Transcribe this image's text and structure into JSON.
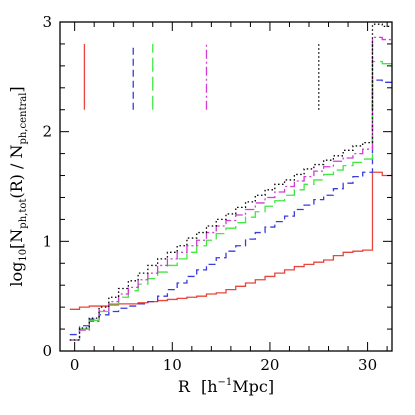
{
  "chart_data": {
    "type": "line",
    "line_style": "step",
    "xlabel": {
      "main": "R",
      "unit_open": "[h",
      "unit_exp": "−1",
      "unit_close": "Mpc]"
    },
    "ylabel": {
      "prefix": "log",
      "base": "10",
      "open": "[N",
      "sub1": "ph,tot",
      "mid": "(R) / N",
      "sub2": "ph,central",
      "close": "]"
    },
    "xlim": [
      -1.5,
      32.5
    ],
    "ylim": [
      0,
      3
    ],
    "x_ticks": [
      {
        "value": 0,
        "label": "0"
      },
      {
        "value": 10,
        "label": "10"
      },
      {
        "value": 20,
        "label": "20"
      },
      {
        "value": 30,
        "label": "30"
      }
    ],
    "y_ticks": [
      {
        "value": 0,
        "label": "0"
      },
      {
        "value": 1,
        "label": "1"
      },
      {
        "value": 2,
        "label": "2"
      },
      {
        "value": 3,
        "label": "3"
      }
    ],
    "x_minor_step": 2,
    "y_minor_step": 0.2,
    "grid": false,
    "marker_lines": [
      {
        "x": 1,
        "y0": 2.2,
        "y1": 2.8,
        "color": "#e8453c",
        "dash": "none"
      },
      {
        "x": 6,
        "y0": 2.2,
        "y1": 2.8,
        "color": "#3b3be0",
        "dash": "7,4"
      },
      {
        "x": 8,
        "y0": 2.2,
        "y1": 2.8,
        "color": "#41e841",
        "dash": "14,5"
      },
      {
        "x": 13.5,
        "y0": 2.2,
        "y1": 2.8,
        "color": "#d23cd2",
        "dash": "9,3,2,3"
      },
      {
        "x": 25,
        "y0": 2.2,
        "y1": 2.8,
        "color": "#000000",
        "dash": "1.5,2.5"
      },
      {
        "x": 30.5,
        "y0": 2.2,
        "y1": 2.8,
        "color": "#000000",
        "dash": "1.5,2.5"
      }
    ],
    "series": [
      {
        "color": "#e8453c",
        "dash": "none",
        "x": [
          0,
          1,
          2,
          3,
          4,
          5,
          6,
          7,
          8,
          9,
          10,
          11,
          12,
          13,
          14,
          15,
          16,
          17,
          18,
          19,
          20,
          21,
          22,
          23,
          24,
          25,
          26,
          27,
          28,
          29,
          30,
          31,
          32
        ],
        "values": [
          0.38,
          0.4,
          0.41,
          0.41,
          0.42,
          0.43,
          0.43,
          0.44,
          0.45,
          0.46,
          0.47,
          0.48,
          0.49,
          0.5,
          0.52,
          0.53,
          0.56,
          0.59,
          0.62,
          0.65,
          0.68,
          0.71,
          0.74,
          0.77,
          0.79,
          0.81,
          0.83,
          0.87,
          0.9,
          0.91,
          0.92,
          1.63,
          1.6
        ]
      },
      {
        "color": "#3b3be0",
        "dash": "7,4",
        "x": [
          0,
          1,
          2,
          3,
          4,
          5,
          6,
          7,
          8,
          9,
          10,
          11,
          12,
          13,
          14,
          15,
          16,
          17,
          18,
          19,
          20,
          21,
          22,
          23,
          24,
          25,
          26,
          27,
          28,
          29,
          30,
          31,
          32
        ],
        "values": [
          0.15,
          0.23,
          0.29,
          0.33,
          0.36,
          0.39,
          0.41,
          0.43,
          0.45,
          0.5,
          0.56,
          0.62,
          0.68,
          0.74,
          0.79,
          0.85,
          0.91,
          0.96,
          1.02,
          1.08,
          1.13,
          1.18,
          1.23,
          1.29,
          1.33,
          1.38,
          1.42,
          1.48,
          1.53,
          1.59,
          1.63,
          2.47,
          2.45
        ]
      },
      {
        "color": "#41e841",
        "dash": "14,5",
        "x": [
          0,
          1,
          2,
          3,
          4,
          5,
          6,
          7,
          8,
          9,
          10,
          11,
          12,
          13,
          14,
          15,
          16,
          17,
          18,
          19,
          20,
          21,
          22,
          23,
          24,
          25,
          26,
          27,
          28,
          29,
          30,
          31,
          32
        ],
        "values": [
          0.1,
          0.2,
          0.28,
          0.36,
          0.43,
          0.49,
          0.55,
          0.61,
          0.66,
          0.72,
          0.78,
          0.84,
          0.9,
          0.96,
          1.01,
          1.07,
          1.12,
          1.17,
          1.22,
          1.27,
          1.32,
          1.37,
          1.42,
          1.47,
          1.52,
          1.56,
          1.61,
          1.65,
          1.69,
          1.72,
          1.75,
          2.64,
          2.62
        ]
      },
      {
        "color": "#d23cd2",
        "dash": "9,3,2,3",
        "x": [
          0,
          1,
          2,
          3,
          4,
          5,
          6,
          7,
          8,
          9,
          10,
          11,
          12,
          13,
          14,
          15,
          16,
          17,
          18,
          19,
          20,
          21,
          22,
          23,
          24,
          25,
          26,
          27,
          28,
          29,
          30,
          31,
          32
        ],
        "values": [
          0.1,
          0.19,
          0.27,
          0.37,
          0.45,
          0.52,
          0.58,
          0.65,
          0.71,
          0.78,
          0.84,
          0.9,
          0.96,
          1.01,
          1.08,
          1.14,
          1.19,
          1.24,
          1.29,
          1.35,
          1.4,
          1.45,
          1.5,
          1.55,
          1.59,
          1.64,
          1.68,
          1.73,
          1.76,
          1.8,
          1.84,
          2.86,
          2.84
        ]
      },
      {
        "color": "#000000",
        "dash": "1.5,2.5",
        "x": [
          0,
          1,
          2,
          3,
          4,
          5,
          6,
          7,
          8,
          9,
          10,
          11,
          12,
          13,
          14,
          15,
          16,
          17,
          18,
          19,
          20,
          21,
          22,
          23,
          24,
          25,
          26,
          27,
          28,
          29,
          30,
          31,
          32
        ],
        "values": [
          0.1,
          0.21,
          0.3,
          0.4,
          0.49,
          0.57,
          0.64,
          0.71,
          0.78,
          0.84,
          0.9,
          0.96,
          1.03,
          1.08,
          1.14,
          1.2,
          1.25,
          1.31,
          1.36,
          1.42,
          1.47,
          1.52,
          1.56,
          1.61,
          1.66,
          1.7,
          1.74,
          1.78,
          1.83,
          1.87,
          1.9,
          2.98,
          2.96
        ]
      }
    ]
  }
}
